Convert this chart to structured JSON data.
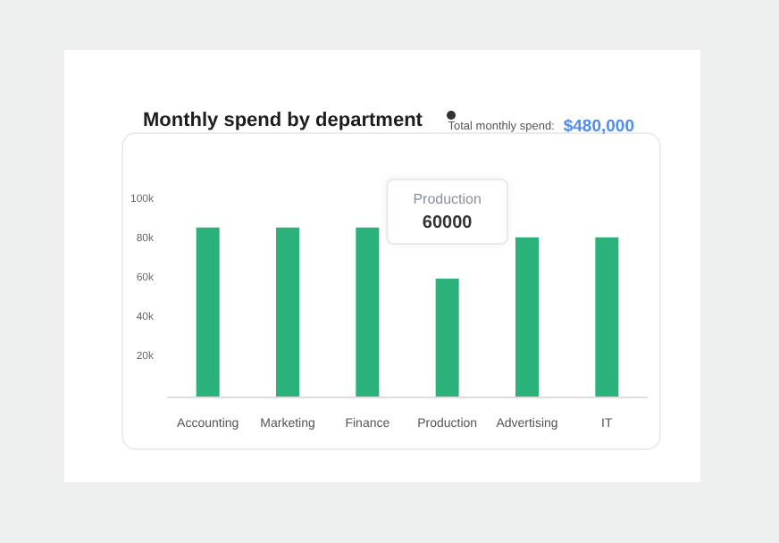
{
  "chart_data": {
    "type": "bar",
    "title": "Monthly spend by department",
    "annotations": [
      "Total monthly spend: $480,000",
      "Production"
    ],
    "categories": [
      "Accounting",
      "Marketing",
      "Finance",
      "Production",
      "Advertising",
      "IT"
    ],
    "values": [
      86000,
      86000,
      86000,
      60000,
      81000,
      81000
    ],
    "value_labels": [
      null,
      null,
      null,
      "60000",
      null,
      null
    ],
    "color": "#2bb27b",
    "ylim": [
      0,
      100000
    ],
    "yticks": [
      {
        "value": 20000,
        "label": "20k"
      },
      {
        "value": 40000,
        "label": "40k"
      },
      {
        "value": 60000,
        "label": "60k"
      },
      {
        "value": 80000,
        "label": "80k"
      },
      {
        "value": 100000,
        "label": "100k"
      }
    ],
    "grid": false
  }
}
